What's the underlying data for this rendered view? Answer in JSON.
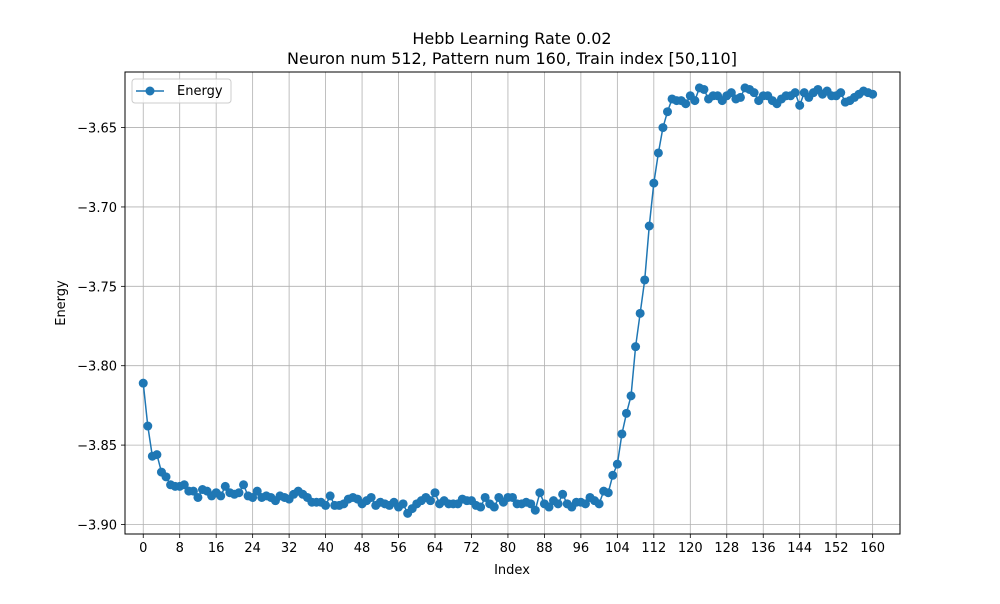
{
  "chart_data": {
    "type": "line",
    "title_line1": "Hebb Learning Rate 0.02",
    "title_line2": "Neuron num 512, Pattern num 160, Train index [50,110]",
    "xlabel": "Index",
    "ylabel": "Energy",
    "xlim": [
      -4,
      166
    ],
    "ylim": [
      -3.906,
      -3.615
    ],
    "x_ticks": [
      0,
      8,
      16,
      24,
      32,
      40,
      48,
      56,
      64,
      72,
      80,
      88,
      96,
      104,
      112,
      120,
      128,
      136,
      144,
      152,
      160
    ],
    "y_ticks": [
      -3.9,
      -3.85,
      -3.8,
      -3.75,
      -3.7,
      -3.65
    ],
    "y_tick_labels": [
      "−3.90",
      "−3.85",
      "−3.80",
      "−3.75",
      "−3.70",
      "−3.65"
    ],
    "grid": true,
    "legend_position": "top-left",
    "color": "#1f77b4",
    "series": [
      {
        "name": "Energy",
        "x_start": 0,
        "values": [
          -3.811,
          -3.838,
          -3.857,
          -3.856,
          -3.867,
          -3.87,
          -3.875,
          -3.876,
          -3.876,
          -3.875,
          -3.879,
          -3.879,
          -3.883,
          -3.878,
          -3.879,
          -3.882,
          -3.88,
          -3.882,
          -3.876,
          -3.88,
          -3.881,
          -3.88,
          -3.875,
          -3.882,
          -3.883,
          -3.879,
          -3.883,
          -3.882,
          -3.883,
          -3.885,
          -3.882,
          -3.883,
          -3.884,
          -3.881,
          -3.879,
          -3.881,
          -3.883,
          -3.886,
          -3.886,
          -3.886,
          -3.888,
          -3.882,
          -3.888,
          -3.888,
          -3.887,
          -3.884,
          -3.883,
          -3.884,
          -3.887,
          -3.885,
          -3.883,
          -3.888,
          -3.886,
          -3.887,
          -3.888,
          -3.886,
          -3.889,
          -3.887,
          -3.893,
          -3.89,
          -3.887,
          -3.885,
          -3.883,
          -3.885,
          -3.88,
          -3.887,
          -3.885,
          -3.887,
          -3.887,
          -3.887,
          -3.884,
          -3.885,
          -3.885,
          -3.888,
          -3.889,
          -3.883,
          -3.887,
          -3.889,
          -3.883,
          -3.886,
          -3.883,
          -3.883,
          -3.887,
          -3.887,
          -3.886,
          -3.887,
          -3.891,
          -3.88,
          -3.887,
          -3.889,
          -3.885,
          -3.887,
          -3.881,
          -3.887,
          -3.889,
          -3.886,
          -3.886,
          -3.887,
          -3.883,
          -3.885,
          -3.887,
          -3.879,
          -3.88,
          -3.869,
          -3.862,
          -3.843,
          -3.83,
          -3.819,
          -3.788,
          -3.767,
          -3.746,
          -3.712,
          -3.685,
          -3.666,
          -3.65,
          -3.64,
          -3.632,
          -3.633,
          -3.633,
          -3.635,
          -3.63,
          -3.633,
          -3.625,
          -3.626,
          -3.632,
          -3.63,
          -3.63,
          -3.633,
          -3.63,
          -3.628,
          -3.632,
          -3.631,
          -3.625,
          -3.626,
          -3.628,
          -3.633,
          -3.63,
          -3.63,
          -3.633,
          -3.635,
          -3.632,
          -3.63,
          -3.63,
          -3.628,
          -3.636,
          -3.628,
          -3.631,
          -3.628,
          -3.626,
          -3.629,
          -3.627,
          -3.63,
          -3.63,
          -3.628,
          -3.634,
          -3.633,
          -3.631,
          -3.629,
          -3.627,
          -3.628,
          -3.629
        ]
      }
    ]
  }
}
